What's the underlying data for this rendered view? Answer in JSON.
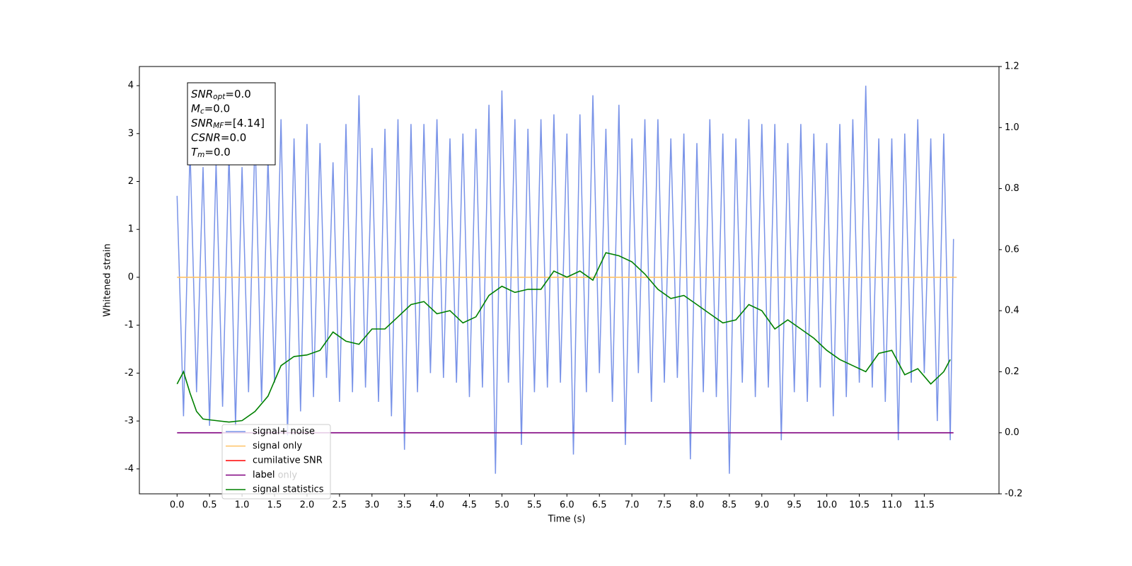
{
  "chart_data": {
    "type": "line",
    "xlabel": "Time (s)",
    "ylabel": "Whitened strain",
    "xlim": [
      -0.58,
      12.65
    ],
    "ylim": [
      -4.52,
      4.4
    ],
    "y2lim": [
      -0.2,
      1.2
    ],
    "xticks": [
      {
        "value": 0,
        "label": "0.0"
      },
      0.5,
      {
        "value": 1,
        "label": "1.0"
      },
      1.5,
      {
        "value": 2,
        "label": "2.0"
      },
      2.5,
      {
        "value": 3,
        "label": "3.0"
      },
      3.5,
      {
        "value": 4,
        "label": "4.0"
      },
      4.5,
      {
        "value": 5,
        "label": "5.0"
      },
      5.5,
      {
        "value": 6,
        "label": "6.0"
      },
      6.5,
      {
        "value": 7,
        "label": "7.0"
      },
      7.5,
      {
        "value": 8,
        "label": "8.0"
      },
      8.5,
      {
        "value": 9,
        "label": "9.0"
      },
      9.5,
      {
        "value": 10,
        "label": "10.0"
      },
      10.5,
      {
        "value": 11,
        "label": "11.0"
      },
      11.5
    ],
    "yticks": [
      -4,
      -3,
      -2,
      -1,
      0,
      1,
      2,
      3,
      4
    ],
    "y2ticks": [
      -0.2,
      {
        "value": 0,
        "label": "0.0"
      },
      0.2,
      0.4,
      0.6,
      0.8,
      {
        "value": 1,
        "label": "1.0"
      },
      1.2
    ],
    "annotation": [
      {
        "base": "SNR",
        "sub": "opt",
        "text": "=0.0"
      },
      {
        "base": "M",
        "sub": "c",
        "text": "=0.0"
      },
      {
        "base": "SNR",
        "sub": "MF",
        "text": "=[4.14]"
      },
      {
        "base": "CSNR",
        "text": "=0.0"
      },
      {
        "base": "T",
        "sub": "m",
        "text": "=0.0"
      }
    ],
    "legend_extra": "label only",
    "series": [
      {
        "name": "signal+ noise",
        "color": "#7993e8",
        "x": [
          0,
          0.1,
          0.2,
          0.3,
          0.4,
          0.5,
          0.6,
          0.7,
          0.8,
          0.9,
          1,
          1.1,
          1.2,
          1.3,
          1.4,
          1.5,
          1.6,
          1.7,
          1.8,
          1.9,
          2,
          2.1,
          2.2,
          2.3,
          2.4,
          2.5,
          2.6,
          2.7,
          2.8,
          2.9,
          3,
          3.1,
          3.2,
          3.3,
          3.4,
          3.5,
          3.6,
          3.7,
          3.8,
          3.9,
          4,
          4.1,
          4.2,
          4.3,
          4.4,
          4.5,
          4.6,
          4.7,
          4.8,
          4.9,
          5,
          5.1,
          5.2,
          5.3,
          5.4,
          5.5,
          5.6,
          5.7,
          5.8,
          5.9,
          6,
          6.1,
          6.2,
          6.3,
          6.4,
          6.5,
          6.6,
          6.7,
          6.8,
          6.9,
          7,
          7.1,
          7.2,
          7.3,
          7.4,
          7.5,
          7.6,
          7.7,
          7.8,
          7.9,
          8,
          8.1,
          8.2,
          8.3,
          8.4,
          8.5,
          8.6,
          8.7,
          8.8,
          8.9,
          9,
          9.1,
          9.2,
          9.3,
          9.4,
          9.5,
          9.6,
          9.7,
          9.8,
          9.9,
          10,
          10.1,
          10.2,
          10.3,
          10.4,
          10.5,
          10.6,
          10.7,
          10.8,
          10.9,
          11,
          11.1,
          11.2,
          11.3,
          11.4,
          11.5,
          11.6,
          11.7,
          11.8,
          11.9,
          11.95
        ],
        "values": [
          1.7,
          -2.9,
          2.7,
          -2.4,
          2.3,
          -3.1,
          2.4,
          -2.7,
          2.6,
          -3.1,
          2.3,
          -2.4,
          3.0,
          -2.6,
          2.5,
          -2.2,
          3.3,
          -3.3,
          2.9,
          -2.8,
          3.2,
          -2.5,
          2.8,
          -2.1,
          2.4,
          -2.6,
          3.2,
          -2.4,
          3.8,
          -2.3,
          2.7,
          -2.6,
          3.1,
          -2.9,
          3.3,
          -3.6,
          3.2,
          -2.4,
          3.2,
          -2.0,
          3.3,
          -2.1,
          2.9,
          -2.2,
          3.0,
          -2.5,
          3.1,
          -2.3,
          3.6,
          -4.1,
          3.9,
          -2.2,
          3.3,
          -3.5,
          3.1,
          -2.4,
          3.3,
          -2.3,
          3.4,
          -2.2,
          3.0,
          -3.7,
          3.4,
          -2.4,
          3.8,
          -2.0,
          3.1,
          -2.6,
          3.6,
          -3.5,
          2.9,
          -2.0,
          3.3,
          -2.6,
          3.3,
          -2.2,
          2.9,
          -2.1,
          3.0,
          -3.8,
          2.8,
          -2.4,
          3.3,
          -2.5,
          3.0,
          -4.1,
          2.9,
          -2.2,
          3.3,
          -2.5,
          3.2,
          -2.3,
          3.2,
          -3.4,
          2.8,
          -2.4,
          3.2,
          -2.6,
          3.0,
          -2.3,
          2.8,
          -2.9,
          3.2,
          -2.5,
          3.3,
          -2.2,
          4.0,
          -2.3,
          2.9,
          -2.6,
          2.9,
          -3.4,
          3.0,
          -2.2,
          3.3,
          -2.0,
          2.9,
          -3.0,
          3.0,
          -3.4,
          0.8
        ]
      },
      {
        "name": "signal only",
        "color": "#ffc266",
        "x": [
          0,
          12
        ],
        "values": [
          0,
          0
        ]
      },
      {
        "name": "cumilative SNR",
        "color": "#ff0000",
        "x": [],
        "values": []
      },
      {
        "name": "label",
        "color": "#800080",
        "axis": "y2",
        "x": [
          0,
          11.95
        ],
        "values": [
          0,
          0
        ]
      },
      {
        "name": "signal statistics",
        "color": "#008000",
        "axis": "y2",
        "x": [
          0,
          0.1,
          0.2,
          0.3,
          0.4,
          0.6,
          0.8,
          1,
          1.2,
          1.4,
          1.6,
          1.8,
          2,
          2.2,
          2.4,
          2.6,
          2.8,
          3,
          3.2,
          3.4,
          3.6,
          3.8,
          4,
          4.2,
          4.4,
          4.6,
          4.8,
          5,
          5.2,
          5.4,
          5.6,
          5.8,
          6,
          6.2,
          6.4,
          6.6,
          6.8,
          7,
          7.2,
          7.4,
          7.6,
          7.8,
          8,
          8.2,
          8.4,
          8.6,
          8.8,
          9,
          9.2,
          9.4,
          9.6,
          9.8,
          10,
          10.2,
          10.4,
          10.6,
          10.8,
          11,
          11.2,
          11.4,
          11.6,
          11.8,
          11.9
        ],
        "values": [
          0.16,
          0.2,
          0.13,
          0.07,
          0.045,
          0.04,
          0.035,
          0.04,
          0.07,
          0.12,
          0.22,
          0.25,
          0.255,
          0.27,
          0.33,
          0.3,
          0.29,
          0.34,
          0.34,
          0.38,
          0.42,
          0.43,
          0.39,
          0.4,
          0.36,
          0.38,
          0.45,
          0.48,
          0.46,
          0.47,
          0.47,
          0.53,
          0.51,
          0.53,
          0.5,
          0.59,
          0.58,
          0.56,
          0.52,
          0.47,
          0.44,
          0.45,
          0.42,
          0.39,
          0.36,
          0.37,
          0.42,
          0.4,
          0.34,
          0.37,
          0.34,
          0.31,
          0.27,
          0.24,
          0.22,
          0.2,
          0.26,
          0.27,
          0.19,
          0.21,
          0.16,
          0.2,
          0.24
        ]
      }
    ]
  }
}
